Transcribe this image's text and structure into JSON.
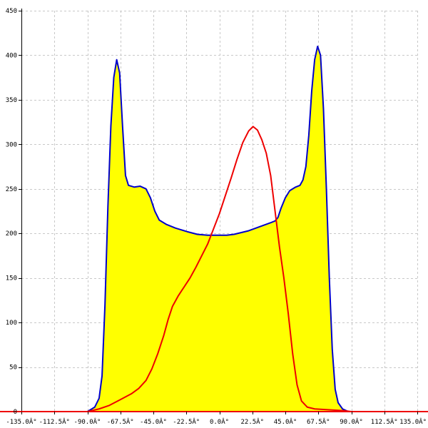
{
  "chart_data": {
    "type": "area",
    "x_tick_labels": [
      "-135.0Â°",
      "-112.5Â°",
      "-90.0Â°",
      "-67.5Â°",
      "-45.0Â°",
      "-22.5Â°",
      "0.0Â°",
      "22.5Â°",
      "45.0Â°",
      "67.5Â°",
      "90.0Â°",
      "112.5Â°",
      "135.0Â°"
    ],
    "x_ticks": [
      -135,
      -112.5,
      -90,
      -67.5,
      -45,
      -22.5,
      0,
      22.5,
      45,
      67.5,
      90,
      112.5,
      135
    ],
    "y_ticks": [
      0,
      50,
      100,
      150,
      200,
      250,
      300,
      350,
      400,
      450
    ],
    "xlim": [
      -135,
      135
    ],
    "ylim": [
      0,
      450
    ],
    "grid": true,
    "series": [
      {
        "color": "#0000cc",
        "fill": "#ffff00",
        "points": [
          [
            -90,
            0
          ],
          [
            -85,
            5
          ],
          [
            -82,
            15
          ],
          [
            -80,
            40
          ],
          [
            -78,
            120
          ],
          [
            -76,
            230
          ],
          [
            -74,
            320
          ],
          [
            -72,
            375
          ],
          [
            -70,
            395
          ],
          [
            -68,
            380
          ],
          [
            -66,
            320
          ],
          [
            -64,
            265
          ],
          [
            -62,
            254
          ],
          [
            -58,
            252
          ],
          [
            -54,
            253
          ],
          [
            -50,
            250
          ],
          [
            -47,
            240
          ],
          [
            -44,
            225
          ],
          [
            -41,
            215
          ],
          [
            -36,
            210
          ],
          [
            -30,
            206
          ],
          [
            -22,
            202
          ],
          [
            -15,
            199
          ],
          [
            -8,
            198
          ],
          [
            0,
            198
          ],
          [
            5,
            198
          ],
          [
            10,
            199
          ],
          [
            15,
            201
          ],
          [
            20,
            203
          ],
          [
            25,
            206
          ],
          [
            30,
            209
          ],
          [
            35,
            212
          ],
          [
            38,
            214
          ],
          [
            40,
            218
          ],
          [
            42,
            228
          ],
          [
            45,
            240
          ],
          [
            48,
            248
          ],
          [
            52,
            252
          ],
          [
            55,
            254
          ],
          [
            57,
            260
          ],
          [
            59,
            275
          ],
          [
            61,
            310
          ],
          [
            63,
            360
          ],
          [
            65,
            395
          ],
          [
            67,
            410
          ],
          [
            69,
            400
          ],
          [
            71,
            340
          ],
          [
            73,
            250
          ],
          [
            75,
            150
          ],
          [
            77,
            70
          ],
          [
            79,
            25
          ],
          [
            81,
            10
          ],
          [
            84,
            3
          ],
          [
            88,
            0
          ],
          [
            90,
            0
          ]
        ]
      },
      {
        "color": "#ee0000",
        "fill": "none",
        "points": [
          [
            -90,
            0
          ],
          [
            -82,
            3
          ],
          [
            -75,
            7
          ],
          [
            -68,
            13
          ],
          [
            -60,
            20
          ],
          [
            -55,
            26
          ],
          [
            -50,
            35
          ],
          [
            -46,
            48
          ],
          [
            -42,
            65
          ],
          [
            -38,
            85
          ],
          [
            -35,
            103
          ],
          [
            -32,
            118
          ],
          [
            -28,
            130
          ],
          [
            -24,
            140
          ],
          [
            -20,
            150
          ],
          [
            -16,
            162
          ],
          [
            -12,
            175
          ],
          [
            -8,
            188
          ],
          [
            -4,
            205
          ],
          [
            0,
            222
          ],
          [
            4,
            242
          ],
          [
            8,
            262
          ],
          [
            12,
            283
          ],
          [
            16,
            302
          ],
          [
            20,
            315
          ],
          [
            23,
            320
          ],
          [
            26,
            316
          ],
          [
            29,
            305
          ],
          [
            32,
            290
          ],
          [
            35,
            265
          ],
          [
            38,
            225
          ],
          [
            41,
            185
          ],
          [
            44,
            150
          ],
          [
            47,
            110
          ],
          [
            50,
            65
          ],
          [
            53,
            30
          ],
          [
            56,
            12
          ],
          [
            60,
            5
          ],
          [
            65,
            3
          ],
          [
            75,
            2
          ],
          [
            85,
            1
          ],
          [
            90,
            0
          ]
        ]
      }
    ],
    "baseline_color": "#ee0000"
  }
}
